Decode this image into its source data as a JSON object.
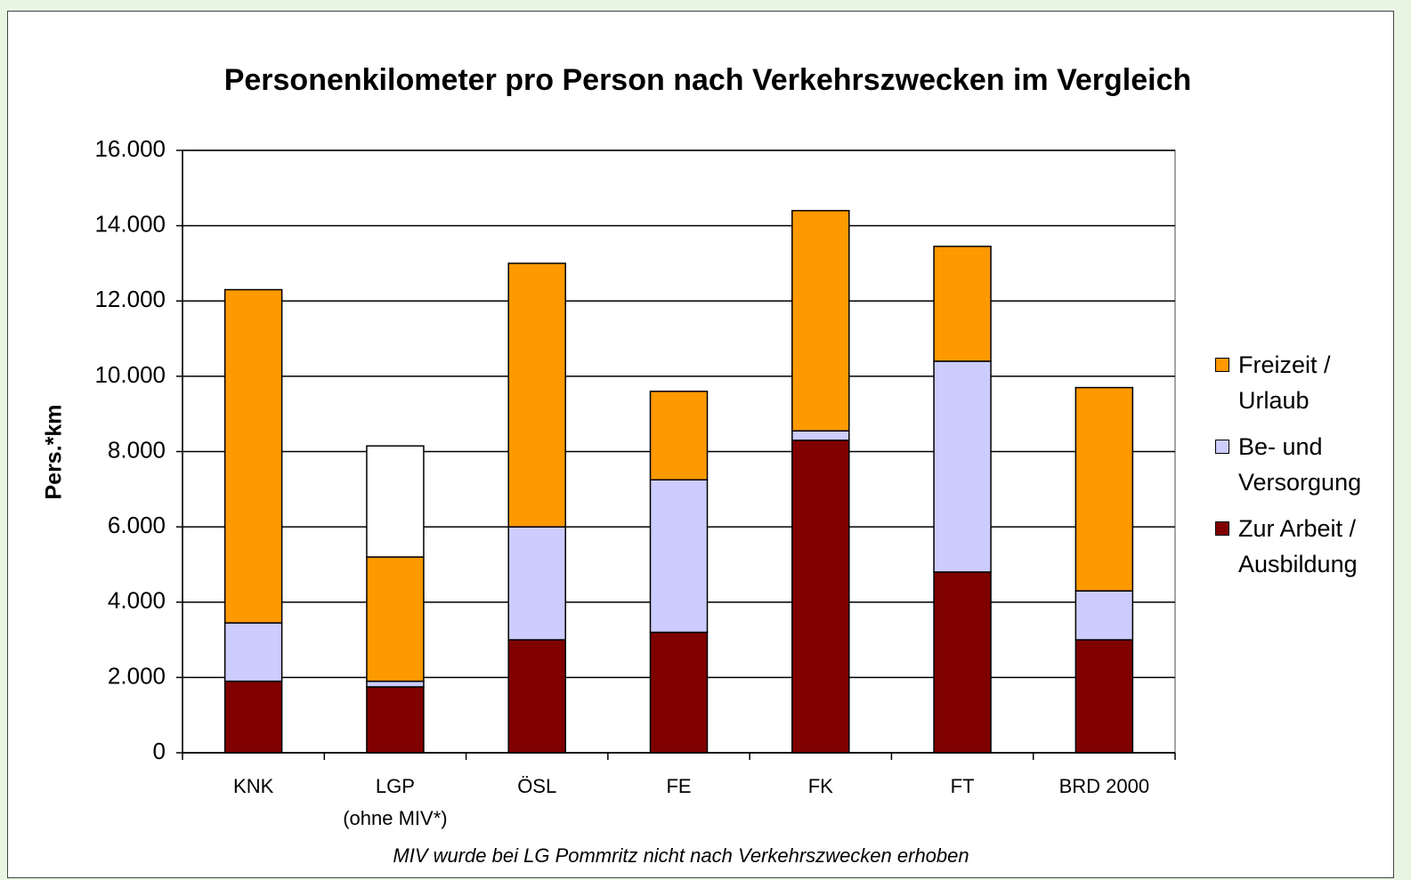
{
  "chart_data": {
    "type": "stacked_bar",
    "title": "Personenkilometer pro Person nach Verkehrszwecken im Vergleich",
    "y_label": "Pers.*km",
    "categories": [
      "KNK",
      "LGP",
      "ÖSL",
      "FE",
      "FK",
      "FT",
      "BRD  2000"
    ],
    "subcategories": [
      null,
      "(ohne MIV*)",
      null,
      null,
      null,
      null,
      null
    ],
    "series": [
      {
        "name": "Zur Arbeit / Ausbildung",
        "color": "#800000",
        "values": [
          1900,
          1750,
          3000,
          3200,
          8300,
          4800,
          3000
        ]
      },
      {
        "name": "Be- und Versorgung",
        "color": "#ccccff",
        "values": [
          1550,
          150,
          3000,
          4050,
          250,
          5600,
          1300
        ]
      },
      {
        "name": "Freizeit / Urlaub",
        "color": "#ff9900",
        "values": [
          8850,
          3300,
          7000,
          2350,
          5850,
          3050,
          5400
        ]
      },
      {
        "color": "#ffffff",
        "values": [
          null,
          2950,
          null,
          null,
          null,
          null,
          null
        ]
      }
    ],
    "ylim": [
      0,
      16000
    ],
    "yticks": [
      0,
      {
        "value": 2000,
        "label": "2.000"
      },
      {
        "value": 4000,
        "label": "4.000"
      },
      {
        "value": 6000,
        "label": "6.000"
      },
      {
        "value": 8000,
        "label": "8.000"
      },
      {
        "value": 10000,
        "label": "10.000"
      },
      {
        "value": 12000,
        "label": "12.000"
      },
      {
        "value": 14000,
        "label": "14.000"
      },
      {
        "value": 16000,
        "label": "16.000"
      }
    ],
    "grid": true,
    "legend": "right",
    "footnote": "MIV wurde bei LG Pommritz nicht nach Verkehrszwecken erhoben"
  }
}
